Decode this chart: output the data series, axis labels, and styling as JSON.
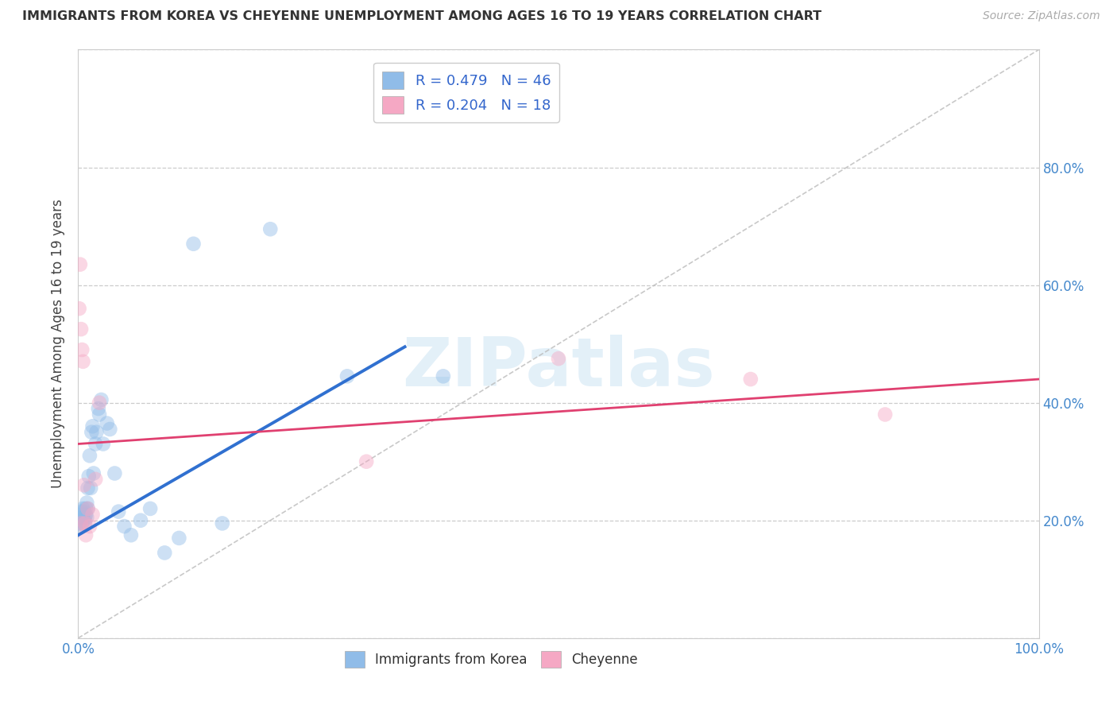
{
  "title": "IMMIGRANTS FROM KOREA VS CHEYENNE UNEMPLOYMENT AMONG AGES 16 TO 19 YEARS CORRELATION CHART",
  "source": "Source: ZipAtlas.com",
  "ylabel": "Unemployment Among Ages 16 to 19 years",
  "xlim": [
    0,
    1.0
  ],
  "ylim": [
    0,
    1.0
  ],
  "xtick_positions": [
    0.0,
    0.1,
    0.2,
    0.3,
    0.4,
    0.5,
    0.6,
    0.7,
    0.8,
    0.9,
    1.0
  ],
  "xticklabels_show": {
    "0.0": "0.0%",
    "1.0": "100.0%"
  },
  "yticklabels_right": [
    "20.0%",
    "40.0%",
    "60.0%",
    "80.0%"
  ],
  "ytick_right_vals": [
    0.2,
    0.4,
    0.6,
    0.8
  ],
  "watermark": "ZIPatlas",
  "legend_R_entries": [
    {
      "label": "R = 0.479   N = 46",
      "color": "#aac8f0"
    },
    {
      "label": "R = 0.204   N = 18",
      "color": "#f5a8c4"
    }
  ],
  "legend_bottom": [
    {
      "label": "Immigrants from Korea",
      "color": "#aac8f0"
    },
    {
      "label": "Cheyenne",
      "color": "#f5a8c4"
    }
  ],
  "blue_scatter_x": [
    0.001,
    0.002,
    0.002,
    0.003,
    0.003,
    0.004,
    0.004,
    0.005,
    0.005,
    0.006,
    0.006,
    0.007,
    0.007,
    0.008,
    0.008,
    0.009,
    0.009,
    0.01,
    0.01,
    0.011,
    0.012,
    0.013,
    0.014,
    0.015,
    0.016,
    0.018,
    0.019,
    0.021,
    0.022,
    0.024,
    0.026,
    0.03,
    0.033,
    0.038,
    0.042,
    0.048,
    0.055,
    0.065,
    0.075,
    0.09,
    0.105,
    0.12,
    0.15,
    0.2,
    0.28,
    0.38
  ],
  "blue_scatter_y": [
    0.195,
    0.205,
    0.19,
    0.215,
    0.2,
    0.195,
    0.21,
    0.22,
    0.205,
    0.2,
    0.215,
    0.205,
    0.195,
    0.22,
    0.21,
    0.23,
    0.205,
    0.255,
    0.22,
    0.275,
    0.31,
    0.255,
    0.35,
    0.36,
    0.28,
    0.33,
    0.35,
    0.39,
    0.38,
    0.405,
    0.33,
    0.365,
    0.355,
    0.28,
    0.215,
    0.19,
    0.175,
    0.2,
    0.22,
    0.145,
    0.17,
    0.67,
    0.195,
    0.695,
    0.445,
    0.445
  ],
  "pink_scatter_x": [
    0.001,
    0.002,
    0.003,
    0.003,
    0.004,
    0.005,
    0.006,
    0.007,
    0.008,
    0.01,
    0.012,
    0.015,
    0.018,
    0.022,
    0.3,
    0.5,
    0.7,
    0.84
  ],
  "pink_scatter_y": [
    0.56,
    0.635,
    0.525,
    0.195,
    0.49,
    0.47,
    0.26,
    0.195,
    0.175,
    0.22,
    0.19,
    0.21,
    0.27,
    0.4,
    0.3,
    0.475,
    0.44,
    0.38
  ],
  "blue_line_x": [
    0.0,
    0.34
  ],
  "blue_line_y": [
    0.175,
    0.495
  ],
  "pink_line_x": [
    0.0,
    1.0
  ],
  "pink_line_y": [
    0.33,
    0.44
  ],
  "diag_line_x": [
    0.0,
    1.0
  ],
  "diag_line_y": [
    0.0,
    1.0
  ],
  "blue_color": "#90bce8",
  "pink_color": "#f5a8c4",
  "blue_line_color": "#3070d0",
  "pink_line_color": "#e04070",
  "scatter_size": 180,
  "scatter_alpha": 0.45,
  "background_color": "#ffffff",
  "grid_color": "#cccccc"
}
